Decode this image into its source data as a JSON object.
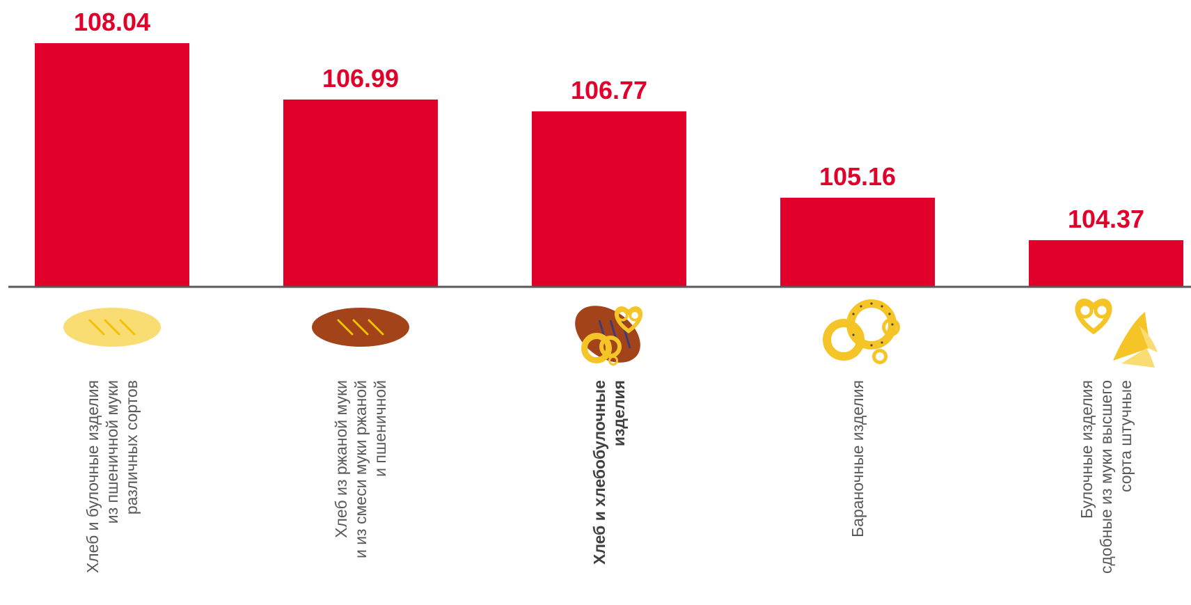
{
  "chart_data": {
    "type": "bar",
    "categories": [
      [
        "Хлеб и булочные изделия",
        "из пшеничной муки",
        "различных сортов"
      ],
      [
        "Хлеб из ржаной муки",
        "и из смеси муки ржаной",
        "и пшеничной"
      ],
      [
        "Хлеб и хлебобулочные",
        "изделия"
      ],
      [
        "Бараночные изделия"
      ],
      [
        "Булочные изделия",
        "сдобные из муки высшего",
        "сорта штучные"
      ]
    ],
    "values": [
      108.04,
      106.99,
      106.77,
      105.16,
      104.37
    ],
    "value_labels": [
      "108.04",
      "106.99",
      "106.77",
      "105.16",
      "104.37"
    ],
    "highlighted_category": 2,
    "baseline": 103.5,
    "ylim": [
      103.5,
      108.04
    ],
    "grid": false,
    "legend": "none",
    "colors": {
      "bar": "#e0002a",
      "value_label": "#e0002a",
      "axis": "#595959",
      "category_text": "#595959",
      "category_text_bold": "#404040",
      "bread_light": "#f9dc72",
      "bread_dark": "#a2431a",
      "bread_slash": "#f2c200",
      "bread_slash_dark": "#3c3c78",
      "bagel": "#f5c528",
      "bagel_dots": "#5a4530"
    },
    "icons": [
      "light-bread-loaf-icon",
      "rye-bread-loaf-icon",
      "bakery-assortment-icon",
      "bagels-icon",
      "pretzel-croissant-icon"
    ]
  }
}
